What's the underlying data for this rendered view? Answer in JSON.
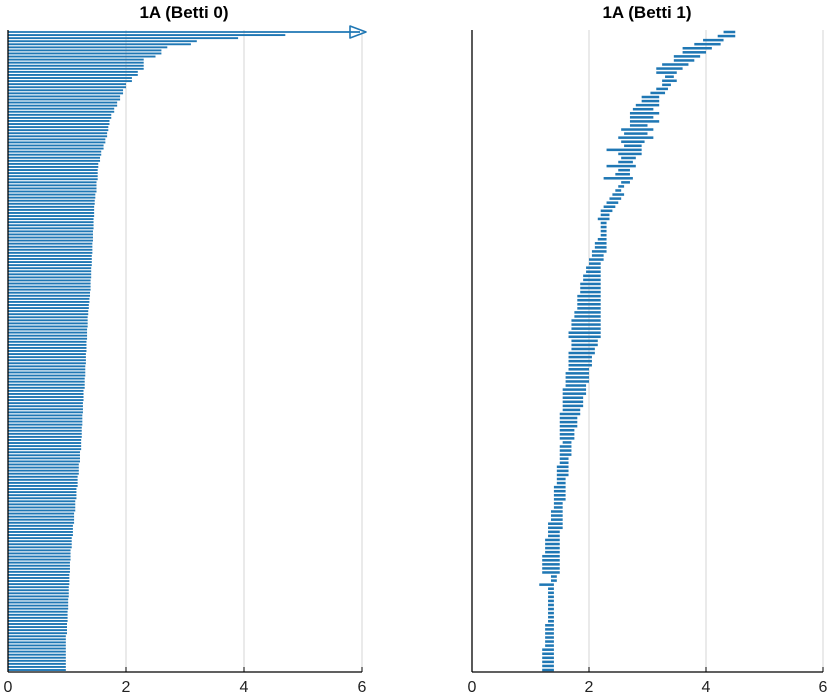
{
  "chart_data": [
    {
      "type": "barcode",
      "title": "1A (Betti 0)",
      "xlim": [
        0,
        6
      ],
      "xticks": [
        0,
        2,
        4,
        6
      ],
      "grid": "vertical",
      "color": "#1f77b4",
      "infinite_bar": {
        "birth": 0,
        "death": "inf"
      },
      "bars": [
        [
          0,
          4.7
        ],
        [
          0,
          3.9
        ],
        [
          0,
          3.2
        ],
        [
          0,
          3.1
        ],
        [
          0,
          2.7
        ],
        [
          0,
          2.6
        ],
        [
          0,
          2.6
        ],
        [
          0,
          2.5
        ],
        [
          0,
          2.3
        ],
        [
          0,
          2.3
        ],
        [
          0,
          2.3
        ],
        [
          0,
          2.3
        ],
        [
          0,
          2.2
        ],
        [
          0,
          2.2
        ],
        [
          0,
          2.1
        ],
        [
          0,
          2.1
        ],
        [
          0,
          2.0
        ],
        [
          0,
          2.0
        ],
        [
          0,
          1.95
        ],
        [
          0,
          1.95
        ],
        [
          0,
          1.9
        ],
        [
          0,
          1.9
        ],
        [
          0,
          1.85
        ],
        [
          0,
          1.85
        ],
        [
          0,
          1.8
        ],
        [
          0,
          1.8
        ],
        [
          0,
          1.75
        ],
        [
          0,
          1.75
        ],
        [
          0,
          1.72
        ],
        [
          0,
          1.72
        ],
        [
          0,
          1.7
        ],
        [
          0,
          1.7
        ],
        [
          0,
          1.68
        ],
        [
          0,
          1.68
        ],
        [
          0,
          1.65
        ],
        [
          0,
          1.65
        ],
        [
          0,
          1.62
        ],
        [
          0,
          1.62
        ],
        [
          0,
          1.58
        ],
        [
          0,
          1.58
        ],
        [
          0,
          1.56
        ],
        [
          0,
          1.56
        ],
        [
          0,
          1.53
        ],
        [
          0,
          1.53
        ],
        [
          0,
          1.52
        ],
        [
          0,
          1.52
        ],
        [
          0,
          1.52
        ],
        [
          0,
          1.52
        ],
        [
          0,
          1.5
        ],
        [
          0,
          1.5
        ],
        [
          0,
          1.5
        ],
        [
          0,
          1.5
        ],
        [
          0,
          1.48
        ],
        [
          0,
          1.48
        ],
        [
          0,
          1.47
        ],
        [
          0,
          1.47
        ],
        [
          0,
          1.46
        ],
        [
          0,
          1.46
        ],
        [
          0,
          1.46
        ],
        [
          0,
          1.46
        ],
        [
          0,
          1.45
        ],
        [
          0,
          1.45
        ],
        [
          0,
          1.45
        ],
        [
          0,
          1.45
        ],
        [
          0,
          1.44
        ],
        [
          0,
          1.44
        ],
        [
          0,
          1.44
        ],
        [
          0,
          1.44
        ],
        [
          0,
          1.43
        ],
        [
          0,
          1.43
        ],
        [
          0,
          1.43
        ],
        [
          0,
          1.43
        ],
        [
          0,
          1.42
        ],
        [
          0,
          1.42
        ],
        [
          0,
          1.42
        ],
        [
          0,
          1.42
        ],
        [
          0,
          1.41
        ],
        [
          0,
          1.41
        ],
        [
          0,
          1.41
        ],
        [
          0,
          1.41
        ],
        [
          0,
          1.4
        ],
        [
          0,
          1.4
        ],
        [
          0,
          1.4
        ],
        [
          0,
          1.4
        ],
        [
          0,
          1.39
        ],
        [
          0,
          1.39
        ],
        [
          0,
          1.38
        ],
        [
          0,
          1.38
        ],
        [
          0,
          1.37
        ],
        [
          0,
          1.37
        ],
        [
          0,
          1.36
        ],
        [
          0,
          1.36
        ],
        [
          0,
          1.35
        ],
        [
          0,
          1.35
        ],
        [
          0,
          1.35
        ],
        [
          0,
          1.35
        ],
        [
          0,
          1.34
        ],
        [
          0,
          1.34
        ],
        [
          0,
          1.34
        ],
        [
          0,
          1.34
        ],
        [
          0,
          1.33
        ],
        [
          0,
          1.33
        ],
        [
          0,
          1.33
        ],
        [
          0,
          1.33
        ],
        [
          0,
          1.32
        ],
        [
          0,
          1.32
        ],
        [
          0,
          1.32
        ],
        [
          0,
          1.32
        ],
        [
          0,
          1.31
        ],
        [
          0,
          1.31
        ],
        [
          0,
          1.31
        ],
        [
          0,
          1.31
        ],
        [
          0,
          1.3
        ],
        [
          0,
          1.3
        ],
        [
          0,
          1.3
        ],
        [
          0,
          1.3
        ],
        [
          0,
          1.28
        ],
        [
          0,
          1.28
        ],
        [
          0,
          1.28
        ],
        [
          0,
          1.28
        ],
        [
          0,
          1.27
        ],
        [
          0,
          1.27
        ],
        [
          0,
          1.27
        ],
        [
          0,
          1.27
        ],
        [
          0,
          1.26
        ],
        [
          0,
          1.26
        ],
        [
          0,
          1.26
        ],
        [
          0,
          1.26
        ],
        [
          0,
          1.25
        ],
        [
          0,
          1.25
        ],
        [
          0,
          1.25
        ],
        [
          0,
          1.25
        ],
        [
          0,
          1.24
        ],
        [
          0,
          1.24
        ],
        [
          0,
          1.24
        ],
        [
          0,
          1.24
        ],
        [
          0,
          1.22
        ],
        [
          0,
          1.22
        ],
        [
          0,
          1.22
        ],
        [
          0,
          1.22
        ],
        [
          0,
          1.2
        ],
        [
          0,
          1.2
        ],
        [
          0,
          1.2
        ],
        [
          0,
          1.2
        ],
        [
          0,
          1.18
        ],
        [
          0,
          1.18
        ],
        [
          0,
          1.18
        ],
        [
          0,
          1.18
        ],
        [
          0,
          1.16
        ],
        [
          0,
          1.16
        ],
        [
          0,
          1.16
        ],
        [
          0,
          1.16
        ],
        [
          0,
          1.14
        ],
        [
          0,
          1.14
        ],
        [
          0,
          1.14
        ],
        [
          0,
          1.14
        ],
        [
          0,
          1.12
        ],
        [
          0,
          1.12
        ],
        [
          0,
          1.12
        ],
        [
          0,
          1.12
        ],
        [
          0,
          1.1
        ],
        [
          0,
          1.1
        ],
        [
          0,
          1.1
        ],
        [
          0,
          1.1
        ],
        [
          0,
          1.08
        ],
        [
          0,
          1.08
        ],
        [
          0,
          1.08
        ],
        [
          0,
          1.08
        ],
        [
          0,
          1.06
        ],
        [
          0,
          1.06
        ],
        [
          0,
          1.06
        ],
        [
          0,
          1.06
        ],
        [
          0,
          1.05
        ],
        [
          0,
          1.05
        ],
        [
          0,
          1.05
        ],
        [
          0,
          1.05
        ],
        [
          0,
          1.04
        ],
        [
          0,
          1.04
        ],
        [
          0,
          1.04
        ],
        [
          0,
          1.04
        ],
        [
          0,
          1.03
        ],
        [
          0,
          1.03
        ],
        [
          0,
          1.03
        ],
        [
          0,
          1.03
        ],
        [
          0,
          1.02
        ],
        [
          0,
          1.02
        ],
        [
          0,
          1.02
        ],
        [
          0,
          1.02
        ],
        [
          0,
          1.01
        ],
        [
          0,
          1.01
        ],
        [
          0,
          1.01
        ],
        [
          0,
          1.01
        ],
        [
          0,
          1.0
        ],
        [
          0,
          1.0
        ],
        [
          0,
          1.0
        ],
        [
          0,
          1.0
        ],
        [
          0,
          0.98
        ],
        [
          0,
          0.98
        ],
        [
          0,
          0.98
        ],
        [
          0,
          0.98
        ],
        [
          0,
          0.98
        ],
        [
          0,
          0.98
        ],
        [
          0,
          0.98
        ],
        [
          0,
          0.98
        ],
        [
          0,
          0.98
        ],
        [
          0,
          0.98
        ],
        [
          0,
          0.98
        ],
        [
          0,
          0.98
        ]
      ]
    },
    {
      "type": "barcode",
      "title": "1A (Betti 1)",
      "xlim": [
        0,
        6
      ],
      "xticks": [
        0,
        2,
        4,
        6
      ],
      "grid": "vertical",
      "color": "#1f77b4",
      "bars": [
        [
          4.3,
          4.5
        ],
        [
          4.2,
          4.5
        ],
        [
          3.95,
          4.3
        ],
        [
          3.8,
          4.25
        ],
        [
          3.6,
          4.1
        ],
        [
          3.6,
          4.0
        ],
        [
          3.45,
          3.9
        ],
        [
          3.45,
          3.8
        ],
        [
          3.25,
          3.7
        ],
        [
          3.15,
          3.6
        ],
        [
          3.15,
          3.5
        ],
        [
          3.3,
          3.45
        ],
        [
          3.25,
          3.5
        ],
        [
          3.25,
          3.4
        ],
        [
          3.15,
          3.35
        ],
        [
          3.05,
          3.3
        ],
        [
          2.9,
          3.2
        ],
        [
          2.9,
          3.2
        ],
        [
          2.8,
          3.2
        ],
        [
          2.75,
          3.1
        ],
        [
          2.7,
          3.2
        ],
        [
          2.7,
          3.1
        ],
        [
          2.7,
          3.2
        ],
        [
          2.7,
          3.0
        ],
        [
          2.55,
          3.1
        ],
        [
          2.6,
          3.0
        ],
        [
          2.5,
          3.1
        ],
        [
          2.55,
          2.95
        ],
        [
          2.6,
          2.9
        ],
        [
          2.3,
          2.9
        ],
        [
          2.5,
          2.9
        ],
        [
          2.55,
          2.8
        ],
        [
          2.5,
          2.75
        ],
        [
          2.3,
          2.8
        ],
        [
          2.5,
          2.7
        ],
        [
          2.45,
          2.7
        ],
        [
          2.25,
          2.75
        ],
        [
          2.55,
          2.7
        ],
        [
          2.5,
          2.6
        ],
        [
          2.45,
          2.55
        ],
        [
          2.4,
          2.6
        ],
        [
          2.35,
          2.55
        ],
        [
          2.3,
          2.5
        ],
        [
          2.25,
          2.45
        ],
        [
          2.2,
          2.4
        ],
        [
          2.2,
          2.35
        ],
        [
          2.15,
          2.35
        ],
        [
          2.2,
          2.3
        ],
        [
          2.2,
          2.3
        ],
        [
          2.2,
          2.3
        ],
        [
          2.2,
          2.3
        ],
        [
          2.15,
          2.3
        ],
        [
          2.1,
          2.3
        ],
        [
          2.1,
          2.3
        ],
        [
          2.05,
          2.3
        ],
        [
          2.05,
          2.25
        ],
        [
          2.0,
          2.25
        ],
        [
          2.0,
          2.2
        ],
        [
          1.95,
          2.2
        ],
        [
          1.95,
          2.2
        ],
        [
          1.9,
          2.2
        ],
        [
          1.9,
          2.2
        ],
        [
          1.85,
          2.2
        ],
        [
          1.85,
          2.2
        ],
        [
          1.85,
          2.2
        ],
        [
          1.8,
          2.2
        ],
        [
          1.8,
          2.2
        ],
        [
          1.8,
          2.2
        ],
        [
          1.8,
          2.2
        ],
        [
          1.75,
          2.2
        ],
        [
          1.75,
          2.2
        ],
        [
          1.7,
          2.2
        ],
        [
          1.7,
          2.2
        ],
        [
          1.7,
          2.2
        ],
        [
          1.65,
          2.2
        ],
        [
          1.65,
          2.2
        ],
        [
          1.7,
          2.15
        ],
        [
          1.7,
          2.15
        ],
        [
          1.7,
          2.1
        ],
        [
          1.65,
          2.1
        ],
        [
          1.65,
          2.05
        ],
        [
          1.65,
          2.05
        ],
        [
          1.65,
          2.05
        ],
        [
          1.65,
          2.0
        ],
        [
          1.6,
          2.0
        ],
        [
          1.6,
          2.0
        ],
        [
          1.6,
          2.0
        ],
        [
          1.6,
          1.95
        ],
        [
          1.55,
          1.95
        ],
        [
          1.55,
          1.95
        ],
        [
          1.55,
          1.9
        ],
        [
          1.55,
          1.9
        ],
        [
          1.55,
          1.9
        ],
        [
          1.55,
          1.85
        ],
        [
          1.5,
          1.85
        ],
        [
          1.5,
          1.8
        ],
        [
          1.5,
          1.8
        ],
        [
          1.5,
          1.8
        ],
        [
          1.5,
          1.75
        ],
        [
          1.5,
          1.75
        ],
        [
          1.5,
          1.75
        ],
        [
          1.55,
          1.7
        ],
        [
          1.5,
          1.7
        ],
        [
          1.5,
          1.7
        ],
        [
          1.5,
          1.7
        ],
        [
          1.5,
          1.65
        ],
        [
          1.5,
          1.65
        ],
        [
          1.45,
          1.65
        ],
        [
          1.45,
          1.65
        ],
        [
          1.45,
          1.65
        ],
        [
          1.45,
          1.6
        ],
        [
          1.45,
          1.6
        ],
        [
          1.4,
          1.6
        ],
        [
          1.4,
          1.6
        ],
        [
          1.4,
          1.6
        ],
        [
          1.4,
          1.6
        ],
        [
          1.4,
          1.55
        ],
        [
          1.4,
          1.55
        ],
        [
          1.35,
          1.55
        ],
        [
          1.35,
          1.55
        ],
        [
          1.35,
          1.55
        ],
        [
          1.3,
          1.55
        ],
        [
          1.3,
          1.55
        ],
        [
          1.3,
          1.5
        ],
        [
          1.3,
          1.5
        ],
        [
          1.25,
          1.5
        ],
        [
          1.25,
          1.5
        ],
        [
          1.25,
          1.5
        ],
        [
          1.25,
          1.5
        ],
        [
          1.2,
          1.5
        ],
        [
          1.2,
          1.5
        ],
        [
          1.2,
          1.5
        ],
        [
          1.2,
          1.5
        ],
        [
          1.2,
          1.5
        ],
        [
          1.35,
          1.45
        ],
        [
          1.35,
          1.45
        ],
        [
          1.15,
          1.4
        ],
        [
          1.3,
          1.4
        ],
        [
          1.3,
          1.4
        ],
        [
          1.3,
          1.4
        ],
        [
          1.3,
          1.4
        ],
        [
          1.3,
          1.4
        ],
        [
          1.3,
          1.4
        ],
        [
          1.3,
          1.4
        ],
        [
          1.3,
          1.4
        ],
        [
          1.3,
          1.4
        ],
        [
          1.25,
          1.4
        ],
        [
          1.25,
          1.4
        ],
        [
          1.25,
          1.4
        ],
        [
          1.25,
          1.4
        ],
        [
          1.25,
          1.4
        ],
        [
          1.25,
          1.4
        ],
        [
          1.2,
          1.4
        ],
        [
          1.2,
          1.4
        ],
        [
          1.2,
          1.4
        ],
        [
          1.2,
          1.4
        ],
        [
          1.2,
          1.4
        ],
        [
          1.2,
          1.4
        ]
      ]
    }
  ]
}
